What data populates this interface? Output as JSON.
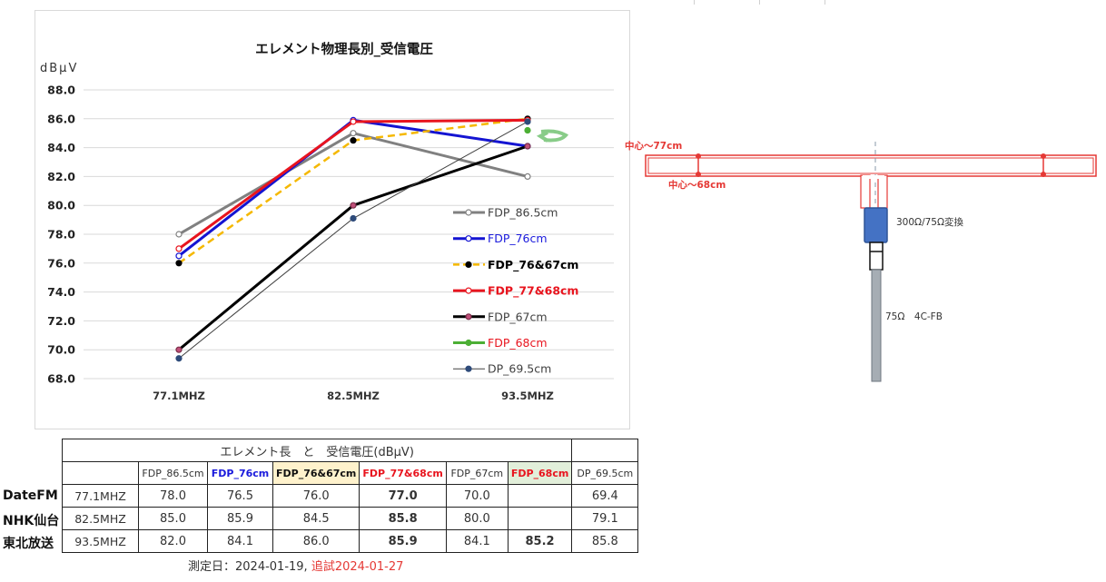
{
  "chart_data": {
    "type": "line",
    "title": "エレメント物理長別_受信電圧",
    "ylabel": "dBμV",
    "xlabel": "",
    "categories": [
      "77.1MHZ",
      "82.5MHZ",
      "93.5MHZ"
    ],
    "ylim": [
      68,
      88
    ],
    "yticks": [
      "68.0",
      "70.0",
      "72.0",
      "74.0",
      "76.0",
      "78.0",
      "80.0",
      "82.0",
      "84.0",
      "86.0",
      "88.0"
    ],
    "grid": true,
    "legend_position": "right",
    "series": [
      {
        "name": "FDP_86.5cm",
        "values": [
          78.0,
          85.0,
          82.0
        ],
        "color": "#808080",
        "dash": false,
        "width": 3,
        "marker_fill": "#ffffff",
        "marker_stroke": "#808080",
        "label_color": "#404040",
        "label_bold": false
      },
      {
        "name": "FDP_76cm",
        "values": [
          76.5,
          85.9,
          84.1
        ],
        "color": "#1414d2",
        "dash": false,
        "width": 3,
        "marker_fill": "#ffffff",
        "marker_stroke": "#1414d2",
        "label_color": "#1a1adc",
        "label_bold": false
      },
      {
        "name": "FDP_76&67cm",
        "values": [
          76.0,
          84.5,
          86.0
        ],
        "color": "#f5b800",
        "dash": true,
        "width": 2.5,
        "marker_fill": "#000000",
        "marker_stroke": "#000000",
        "label_color": "#000000",
        "label_bold": true
      },
      {
        "name": "FDP_77&68cm",
        "values": [
          77.0,
          85.8,
          85.9
        ],
        "color": "#e8141e",
        "dash": false,
        "width": 3,
        "marker_fill": "#ffffff",
        "marker_stroke": "#e8141e",
        "label_color": "#e8141e",
        "label_bold": true
      },
      {
        "name": "FDP_67cm",
        "values": [
          70.0,
          80.0,
          84.1
        ],
        "color": "#000000",
        "dash": false,
        "width": 3,
        "marker_fill": "#c0507a",
        "marker_stroke": "#7a2d48",
        "label_color": "#404040",
        "label_bold": false
      },
      {
        "name": "FDP_68cm",
        "values": [
          null,
          null,
          85.2
        ],
        "color": "#4caf35",
        "dash": false,
        "width": 3,
        "marker_fill": "#4caf35",
        "marker_stroke": "#4caf35",
        "label_color": "#e8141e",
        "label_bold": false
      },
      {
        "name": "DP_69.5cm",
        "values": [
          69.4,
          79.1,
          85.8
        ],
        "color": "#404040",
        "dash": false,
        "width": 1,
        "marker_fill": "#2e4b7a",
        "marker_stroke": "#2e4b7a",
        "label_color": "#404040",
        "label_bold": false
      }
    ]
  },
  "diagram": {
    "label_77": "中心～77cm",
    "label_68": "中心～68cm",
    "balun_label": "300Ω/75Ω変換",
    "cable_label": "75Ω　4C-FB"
  },
  "table": {
    "title": "エレメント長　と　受信電圧(dBμV)",
    "headers": [
      "FDP_86.5cm",
      "FDP_76cm",
      "FDP_76&67cm",
      "FDP_77&68cm",
      "FDP_67cm",
      "FDP_68cm",
      "DP_69.5cm"
    ],
    "rows": [
      {
        "station": "DateFM",
        "freq": "77.1MHZ",
        "cells": [
          "78.0",
          "76.5",
          "76.0",
          "77.0",
          "70.0",
          "",
          "69.4"
        ]
      },
      {
        "station": "NHK仙台",
        "freq": "82.5MHZ",
        "cells": [
          "85.0",
          "85.9",
          "84.5",
          "85.8",
          "80.0",
          "",
          "79.1"
        ]
      },
      {
        "station": "東北放送",
        "freq": "93.5MHZ",
        "cells": [
          "82.0",
          "84.1",
          "86.0",
          "85.9",
          "84.1",
          "85.2",
          "85.8"
        ]
      }
    ],
    "date_text": "測定日：2024-01-19,",
    "retest_text": "追試2024-01-27"
  }
}
